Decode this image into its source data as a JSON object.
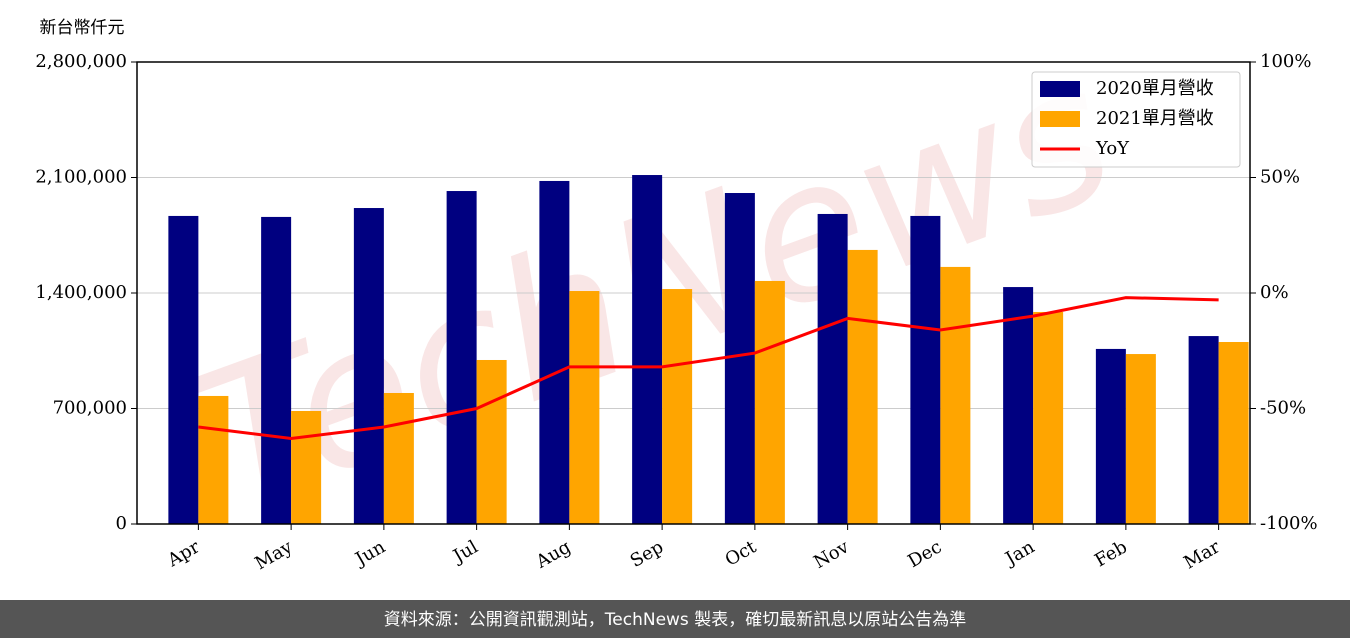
{
  "chart_data": {
    "type": "bar",
    "y_label": "新台幣仟元",
    "watermark": "TechNews",
    "footer": "資料來源：公開資訊觀測站，TechNews 製表，確切最新訊息以原站公告為準",
    "categories": [
      "Apr",
      "May",
      "Jun",
      "Jul",
      "Aug",
      "Sep",
      "Oct",
      "Nov",
      "Dec",
      "Jan",
      "Feb",
      "Mar"
    ],
    "series": [
      {
        "name": "2020單月營收",
        "type": "bar",
        "color": "#000080",
        "values": [
          1867000,
          1861000,
          1915000,
          2018000,
          2079000,
          2115000,
          2006000,
          1879000,
          1867000,
          1436000,
          1061000,
          1139000
        ]
      },
      {
        "name": "2021單月營收",
        "type": "bar",
        "color": "#ffa500",
        "values": [
          776000,
          685000,
          794000,
          994000,
          1412000,
          1424000,
          1473000,
          1661000,
          1558000,
          1285000,
          1030000,
          1103000
        ]
      },
      {
        "name": "YoY",
        "type": "line",
        "axis": "y2",
        "color": "#ff0000",
        "values": [
          -58,
          -63,
          -58,
          -50,
          -32,
          -32,
          -26,
          -11,
          -16,
          -10,
          -2,
          -3
        ]
      }
    ],
    "ylim": [
      0,
      2800000
    ],
    "yticks": [
      {
        "value": 0,
        "label": "0"
      },
      {
        "value": 700000,
        "label": "700,000"
      },
      {
        "value": 1400000,
        "label": "1,400,000"
      },
      {
        "value": 2100000,
        "label": "2,100,000"
      },
      {
        "value": 2800000,
        "label": "2,800,000"
      }
    ],
    "y2lim": [
      -100,
      100
    ],
    "y2ticks": [
      {
        "value": -100,
        "label": "-100%"
      },
      {
        "value": -50,
        "label": "-50%"
      },
      {
        "value": 0,
        "label": "0%"
      },
      {
        "value": 50,
        "label": "50%"
      },
      {
        "value": 100,
        "label": "100%"
      }
    ],
    "grid": true,
    "legend": "upper right"
  }
}
